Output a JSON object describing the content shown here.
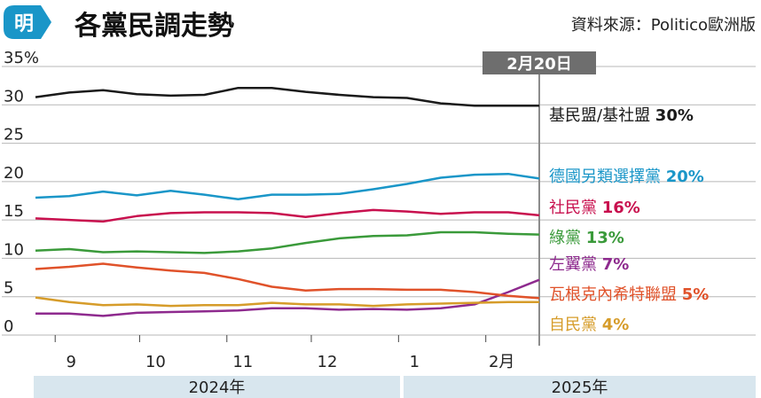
{
  "header": {
    "logo_glyph": "明",
    "title": "各黨民調走勢",
    "source": "資料來源：Politico歐洲版"
  },
  "colors": {
    "brand_blue": "#1a96c8",
    "grid": "#b7b7b7",
    "marker": "#8c8c8c",
    "year_band": "#d8e6ee"
  },
  "chart_data": {
    "type": "line",
    "y_unit": "%",
    "ylim": [
      0,
      35
    ],
    "yticks": [
      "0",
      "5",
      "10",
      "15",
      "20",
      "25",
      "30",
      "35%"
    ],
    "xlim": [
      "2024-08-25",
      "2025-02-20"
    ],
    "xticks": [
      {
        "date": "2024-09-01",
        "label": "9"
      },
      {
        "date": "2024-10-01",
        "label": "10"
      },
      {
        "date": "2024-11-01",
        "label": "11"
      },
      {
        "date": "2024-12-01",
        "label": "12"
      },
      {
        "date": "2025-01-01",
        "label": "1"
      },
      {
        "date": "2025-02-01",
        "label": "2月"
      }
    ],
    "years": [
      {
        "label": "2024年",
        "start": "2024-08-25",
        "end": "2024-12-31"
      },
      {
        "label": "2025年",
        "start": "2025-01-01",
        "end": "2025-02-20"
      }
    ],
    "marker": {
      "date": "2025-02-20",
      "label": "2月20日"
    },
    "x": [
      "2024-08-25",
      "2024-09-06",
      "2024-09-18",
      "2024-09-30",
      "2024-10-12",
      "2024-10-24",
      "2024-11-05",
      "2024-11-17",
      "2024-11-29",
      "2024-12-11",
      "2024-12-23",
      "2025-01-04",
      "2025-01-16",
      "2025-01-28",
      "2025-02-09",
      "2025-02-20"
    ],
    "series": [
      {
        "name": "基民盟/基社盟",
        "final": "30%",
        "color": "#1a1a1a",
        "values": [
          31.0,
          31.6,
          31.9,
          31.4,
          31.2,
          31.3,
          32.2,
          32.2,
          31.7,
          31.3,
          31.0,
          30.9,
          30.2,
          29.9,
          29.9,
          29.9
        ]
      },
      {
        "name": "德國另類選擇黨",
        "final": "20%",
        "color": "#1a96c8",
        "values": [
          17.9,
          18.1,
          18.7,
          18.2,
          18.8,
          18.3,
          17.7,
          18.3,
          18.3,
          18.4,
          19.0,
          19.7,
          20.5,
          20.9,
          21.0,
          20.4
        ]
      },
      {
        "name": "社民黨",
        "final": "16%",
        "color": "#c8104e",
        "values": [
          15.2,
          15.0,
          14.8,
          15.5,
          15.9,
          16.0,
          16.0,
          15.9,
          15.4,
          15.9,
          16.3,
          16.1,
          15.8,
          16.0,
          16.0,
          15.6
        ]
      },
      {
        "name": "綠黨",
        "final": "13%",
        "color": "#3a9a3a",
        "values": [
          11.0,
          11.2,
          10.8,
          10.9,
          10.8,
          10.7,
          10.9,
          11.3,
          12.0,
          12.6,
          12.9,
          13.0,
          13.4,
          13.4,
          13.2,
          13.1
        ]
      },
      {
        "name": "左翼黨",
        "final": "7%",
        "color": "#8e2a8e",
        "values": [
          2.8,
          2.8,
          2.5,
          2.9,
          3.0,
          3.1,
          3.2,
          3.5,
          3.5,
          3.3,
          3.4,
          3.3,
          3.5,
          4.0,
          5.6,
          7.2
        ]
      },
      {
        "name": "瓦根克內希特聯盟",
        "final": "5%",
        "color": "#e0522a",
        "values": [
          8.6,
          8.9,
          9.3,
          8.8,
          8.4,
          8.1,
          7.3,
          6.3,
          5.8,
          6.0,
          6.0,
          5.9,
          5.9,
          5.6,
          5.1,
          4.8
        ]
      },
      {
        "name": "自民黨",
        "final": "4%",
        "color": "#d69c2a",
        "values": [
          4.9,
          4.3,
          3.9,
          4.0,
          3.8,
          3.9,
          3.9,
          4.2,
          4.0,
          4.0,
          3.8,
          4.0,
          4.1,
          4.2,
          4.3,
          4.3
        ]
      }
    ]
  }
}
